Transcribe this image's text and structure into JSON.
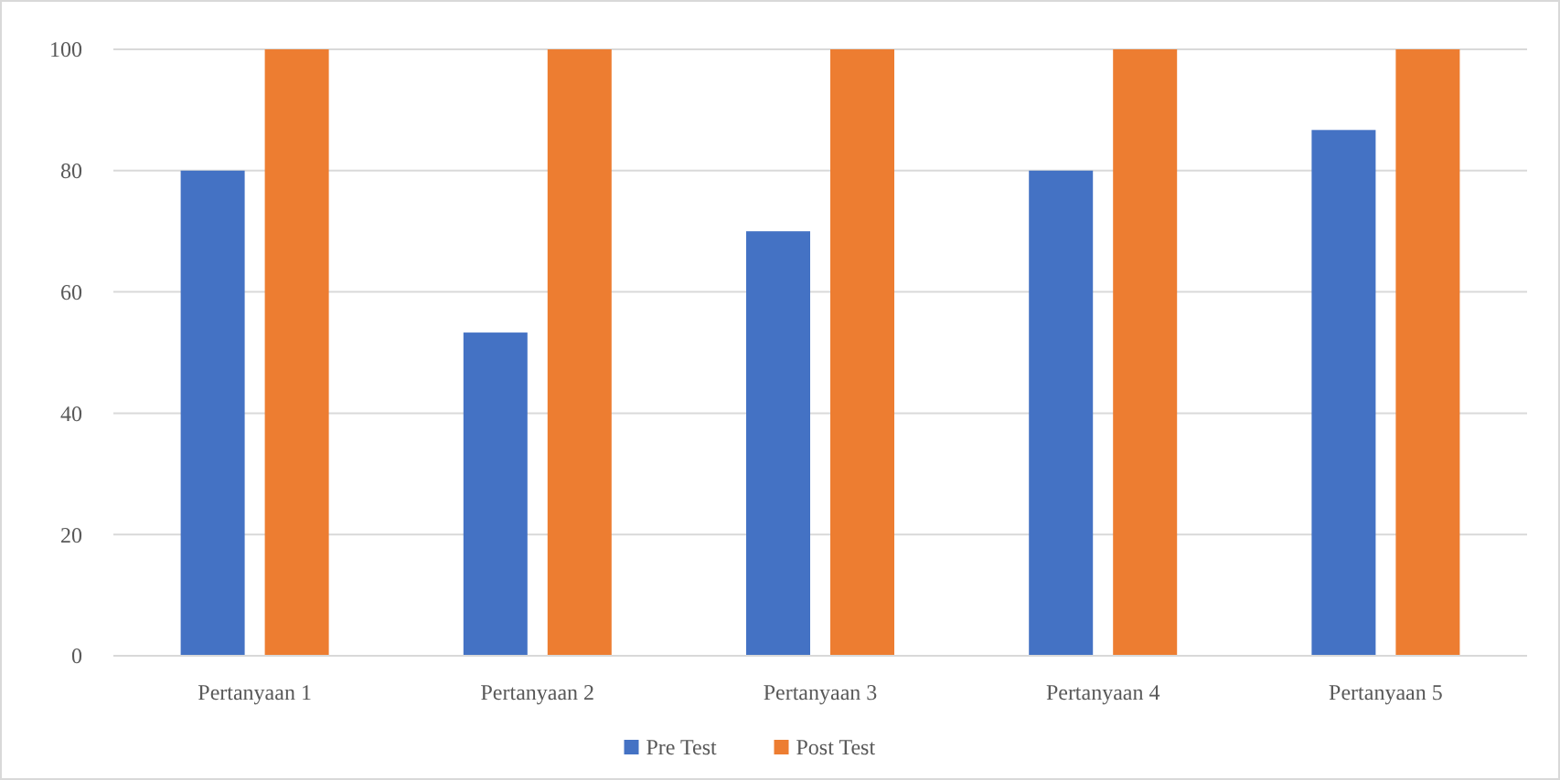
{
  "chart_data": {
    "type": "bar",
    "categories": [
      "Pertanyaan 1",
      "Pertanyaan 2",
      "Pertanyaan 3",
      "Pertanyaan 4",
      "Pertanyaan 5"
    ],
    "series": [
      {
        "name": "Pre Test",
        "color": "#4472c4",
        "values": [
          80,
          53.3,
          70,
          80,
          86.7
        ]
      },
      {
        "name": "Post Test",
        "color": "#ed7d31",
        "values": [
          100,
          100,
          100,
          100,
          100
        ]
      }
    ],
    "ylim": [
      0,
      100
    ],
    "yticks": [
      0,
      20,
      40,
      60,
      80,
      100
    ],
    "grid": "y",
    "legend": "bottom"
  }
}
